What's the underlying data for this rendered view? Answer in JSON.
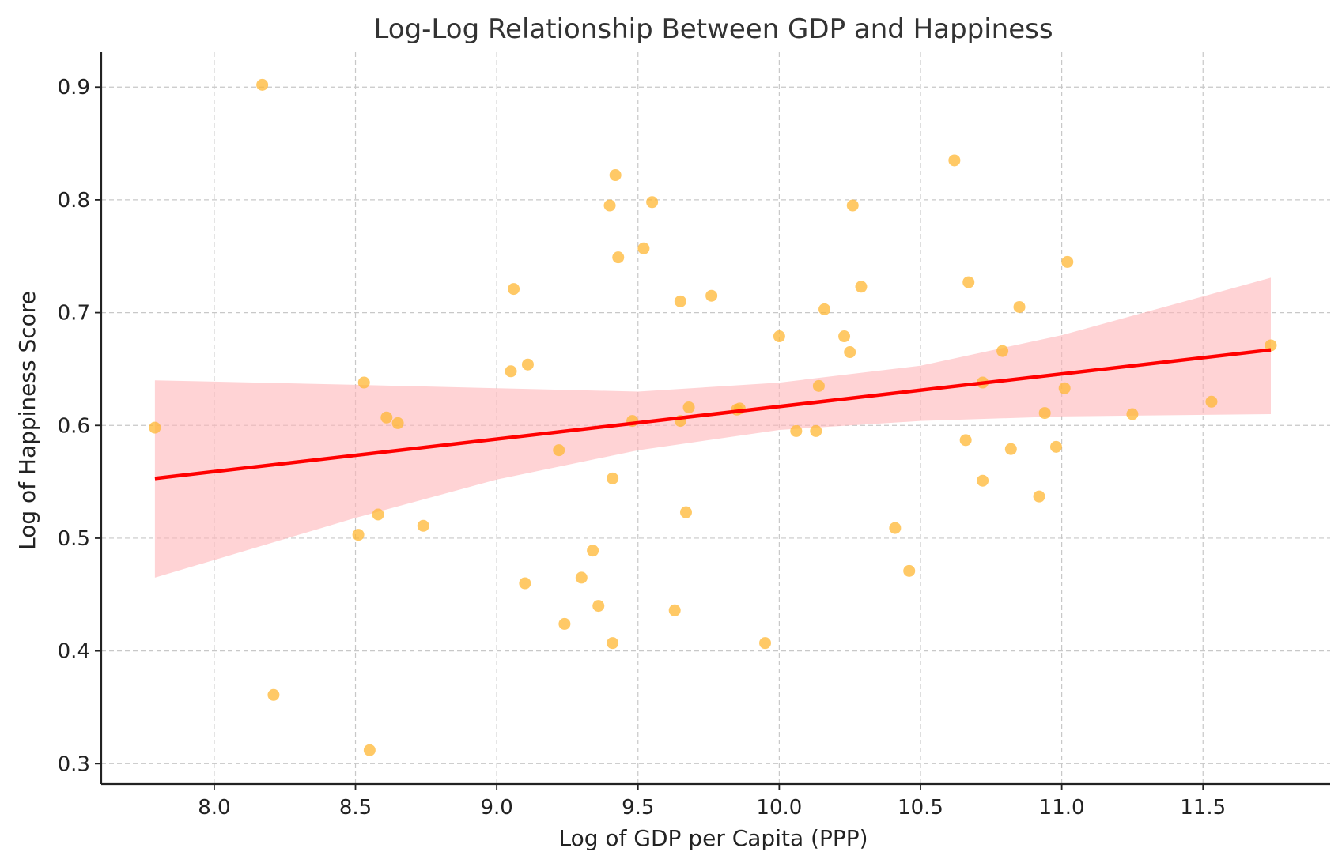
{
  "chart_data": {
    "type": "scatter",
    "title": "Log-Log Relationship Between GDP and Happiness",
    "xlabel": "Log of GDP per Capita (PPP)",
    "ylabel": "Log of Happiness Score",
    "xlim": [
      7.6,
      11.95
    ],
    "ylim": [
      0.282,
      0.931
    ],
    "x_ticks": [
      8.0,
      8.5,
      9.0,
      9.5,
      10.0,
      10.5,
      11.0,
      11.5
    ],
    "y_ticks": [
      0.3,
      0.4,
      0.5,
      0.6,
      0.7,
      0.8,
      0.9
    ],
    "x_tick_labels": [
      "8.0",
      "8.5",
      "9.0",
      "9.5",
      "10.0",
      "10.5",
      "11.0",
      "11.5"
    ],
    "y_tick_labels": [
      "0.3",
      "0.4",
      "0.5",
      "0.6",
      "0.7",
      "0.8",
      "0.9"
    ],
    "grid": true,
    "point_color": "#FFB733",
    "regression_line": {
      "x": [
        7.79,
        11.74
      ],
      "y": [
        0.553,
        0.667
      ],
      "color": "#FF0000"
    },
    "confidence_band": {
      "color": "#FFB6B9",
      "x": [
        7.79,
        8.5,
        9.0,
        9.5,
        10.0,
        10.5,
        11.0,
        11.74
      ],
      "upper": [
        0.64,
        0.636,
        0.633,
        0.63,
        0.638,
        0.653,
        0.68,
        0.731
      ],
      "lower": [
        0.465,
        0.518,
        0.552,
        0.578,
        0.596,
        0.604,
        0.608,
        0.61
      ]
    },
    "points": [
      {
        "x": 7.79,
        "y": 0.598
      },
      {
        "x": 8.17,
        "y": 0.902
      },
      {
        "x": 8.21,
        "y": 0.361
      },
      {
        "x": 8.51,
        "y": 0.503
      },
      {
        "x": 8.53,
        "y": 0.638
      },
      {
        "x": 8.55,
        "y": 0.312
      },
      {
        "x": 8.58,
        "y": 0.521
      },
      {
        "x": 8.61,
        "y": 0.607
      },
      {
        "x": 8.65,
        "y": 0.602
      },
      {
        "x": 8.74,
        "y": 0.511
      },
      {
        "x": 9.05,
        "y": 0.648
      },
      {
        "x": 9.06,
        "y": 0.721
      },
      {
        "x": 9.1,
        "y": 0.46
      },
      {
        "x": 9.11,
        "y": 0.654
      },
      {
        "x": 9.22,
        "y": 0.578
      },
      {
        "x": 9.24,
        "y": 0.424
      },
      {
        "x": 9.3,
        "y": 0.465
      },
      {
        "x": 9.34,
        "y": 0.489
      },
      {
        "x": 9.36,
        "y": 0.44
      },
      {
        "x": 9.4,
        "y": 0.795
      },
      {
        "x": 9.41,
        "y": 0.407
      },
      {
        "x": 9.41,
        "y": 0.553
      },
      {
        "x": 9.42,
        "y": 0.822
      },
      {
        "x": 9.43,
        "y": 0.749
      },
      {
        "x": 9.48,
        "y": 0.604
      },
      {
        "x": 9.52,
        "y": 0.757
      },
      {
        "x": 9.55,
        "y": 0.798
      },
      {
        "x": 9.63,
        "y": 0.436
      },
      {
        "x": 9.65,
        "y": 0.604
      },
      {
        "x": 9.65,
        "y": 0.71
      },
      {
        "x": 9.67,
        "y": 0.523
      },
      {
        "x": 9.68,
        "y": 0.616
      },
      {
        "x": 9.76,
        "y": 0.715
      },
      {
        "x": 9.85,
        "y": 0.614
      },
      {
        "x": 9.86,
        "y": 0.615
      },
      {
        "x": 9.95,
        "y": 0.407
      },
      {
        "x": 10.0,
        "y": 0.679
      },
      {
        "x": 10.06,
        "y": 0.595
      },
      {
        "x": 10.13,
        "y": 0.595
      },
      {
        "x": 10.14,
        "y": 0.635
      },
      {
        "x": 10.16,
        "y": 0.703
      },
      {
        "x": 10.23,
        "y": 0.679
      },
      {
        "x": 10.25,
        "y": 0.665
      },
      {
        "x": 10.26,
        "y": 0.795
      },
      {
        "x": 10.29,
        "y": 0.723
      },
      {
        "x": 10.41,
        "y": 0.509
      },
      {
        "x": 10.46,
        "y": 0.471
      },
      {
        "x": 10.62,
        "y": 0.835
      },
      {
        "x": 10.66,
        "y": 0.587
      },
      {
        "x": 10.67,
        "y": 0.727
      },
      {
        "x": 10.72,
        "y": 0.551
      },
      {
        "x": 10.72,
        "y": 0.638
      },
      {
        "x": 10.79,
        "y": 0.666
      },
      {
        "x": 10.82,
        "y": 0.579
      },
      {
        "x": 10.85,
        "y": 0.705
      },
      {
        "x": 10.92,
        "y": 0.537
      },
      {
        "x": 10.94,
        "y": 0.611
      },
      {
        "x": 10.98,
        "y": 0.581
      },
      {
        "x": 11.01,
        "y": 0.633
      },
      {
        "x": 11.02,
        "y": 0.745
      },
      {
        "x": 11.25,
        "y": 0.61
      },
      {
        "x": 11.53,
        "y": 0.621
      },
      {
        "x": 11.74,
        "y": 0.671
      }
    ]
  }
}
